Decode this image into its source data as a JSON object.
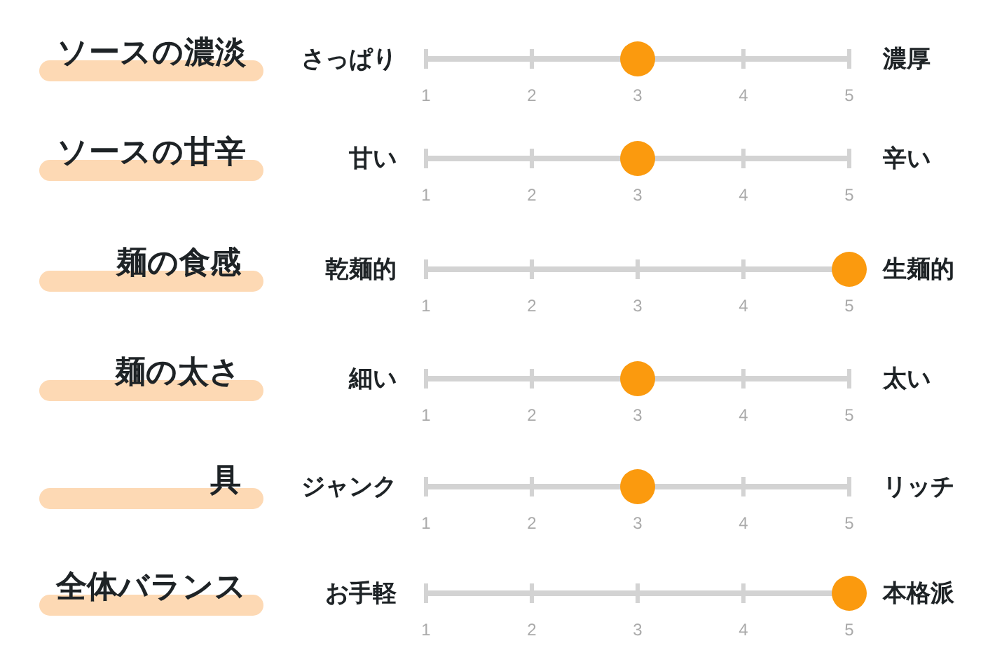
{
  "chart_data": [
    {
      "type": "scatter",
      "categories": [
        "ソースの濃淡"
      ],
      "values": [
        3
      ],
      "orientation": "horizontal",
      "colors": [
        "#fb9a0e"
      ],
      "marker": "circle",
      "xlim": [
        1,
        5
      ],
      "xticks": [
        1,
        2,
        3,
        4,
        5
      ],
      "annotations": [
        "さっぱり",
        "濃厚"
      ]
    },
    {
      "type": "scatter",
      "categories": [
        "ソースの甘辛"
      ],
      "values": [
        3
      ],
      "orientation": "horizontal",
      "colors": [
        "#fb9a0e"
      ],
      "marker": "circle",
      "xlim": [
        1,
        5
      ],
      "xticks": [
        1,
        2,
        3,
        4,
        5
      ],
      "annotations": [
        "甘い",
        "辛い"
      ]
    },
    {
      "type": "scatter",
      "categories": [
        "麺の食感"
      ],
      "values": [
        5
      ],
      "orientation": "horizontal",
      "colors": [
        "#fb9a0e"
      ],
      "marker": "circle",
      "xlim": [
        1,
        5
      ],
      "xticks": [
        1,
        2,
        3,
        4,
        5
      ],
      "annotations": [
        "乾麺的",
        "生麺的"
      ]
    },
    {
      "type": "scatter",
      "categories": [
        "麺の太さ"
      ],
      "values": [
        3
      ],
      "orientation": "horizontal",
      "colors": [
        "#fb9a0e"
      ],
      "marker": "circle",
      "xlim": [
        1,
        5
      ],
      "xticks": [
        1,
        2,
        3,
        4,
        5
      ],
      "annotations": [
        "細い",
        "太い"
      ]
    },
    {
      "type": "scatter",
      "categories": [
        "具"
      ],
      "values": [
        3
      ],
      "orientation": "horizontal",
      "colors": [
        "#fb9a0e"
      ],
      "marker": "circle",
      "xlim": [
        1,
        5
      ],
      "xticks": [
        1,
        2,
        3,
        4,
        5
      ],
      "annotations": [
        "ジャンク",
        "リッチ"
      ]
    },
    {
      "type": "scatter",
      "categories": [
        "全体バランス"
      ],
      "values": [
        5
      ],
      "orientation": "horizontal",
      "colors": [
        "#fb9a0e"
      ],
      "marker": "circle",
      "xlim": [
        1,
        5
      ],
      "xticks": [
        1,
        2,
        3,
        4,
        5
      ],
      "annotations": [
        "お手軽",
        "本格派"
      ]
    }
  ]
}
